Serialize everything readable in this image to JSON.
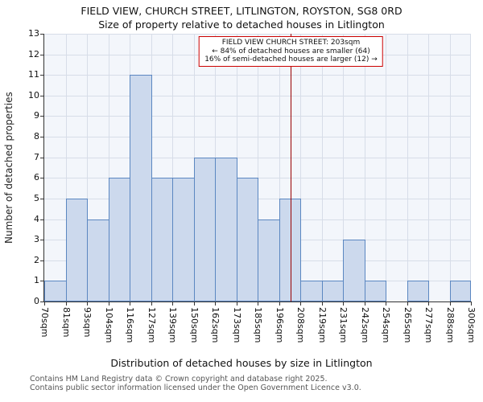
{
  "chart_data": {
    "type": "bar",
    "title": "FIELD VIEW, CHURCH STREET, LITLINGTON, ROYSTON, SG8 0RD",
    "subtitle": "Size of property relative to detached houses in Litlington",
    "xlabel": "Distribution of detached houses by size in Litlington",
    "ylabel": "Number of detached properties",
    "ylim": [
      0,
      13
    ],
    "yticks": [
      0,
      1,
      2,
      3,
      4,
      5,
      6,
      7,
      8,
      9,
      10,
      11,
      12,
      13
    ],
    "xmin": 70,
    "xmax": 300,
    "bin_edges": [
      70,
      81,
      93,
      104,
      116,
      127,
      139,
      150,
      162,
      173,
      185,
      196,
      208,
      219,
      231,
      242,
      254,
      265,
      277,
      288,
      300
    ],
    "tick_labels": [
      "70sqm",
      "81sqm",
      "93sqm",
      "104sqm",
      "116sqm",
      "127sqm",
      "139sqm",
      "150sqm",
      "162sqm",
      "173sqm",
      "185sqm",
      "196sqm",
      "208sqm",
      "219sqm",
      "231sqm",
      "242sqm",
      "254sqm",
      "265sqm",
      "277sqm",
      "288sqm",
      "300sqm"
    ],
    "values": [
      1,
      5,
      4,
      6,
      11,
      6,
      6,
      7,
      7,
      6,
      4,
      5,
      1,
      1,
      3,
      1,
      0,
      1,
      0,
      1
    ],
    "grid": true,
    "legend": "none",
    "marker": {
      "value": 203
    },
    "annotation": {
      "line1": "FIELD VIEW CHURCH STREET: 203sqm",
      "line2": "← 84% of detached houses are smaller (64)",
      "line3": "16% of semi-detached houses are larger (12) →"
    },
    "colors": {
      "bar_fill": "#ccd9ed",
      "bar_edge": "#5b87c1",
      "marker_line": "#990000",
      "annotation_border": "#cc0000",
      "grid_color": "#d7dde8",
      "plot_bg": "#f3f6fb"
    }
  },
  "footer": {
    "line1": "Contains HM Land Registry data © Crown copyright and database right 2025.",
    "line2": "Contains public sector information licensed under the Open Government Licence v3.0."
  }
}
